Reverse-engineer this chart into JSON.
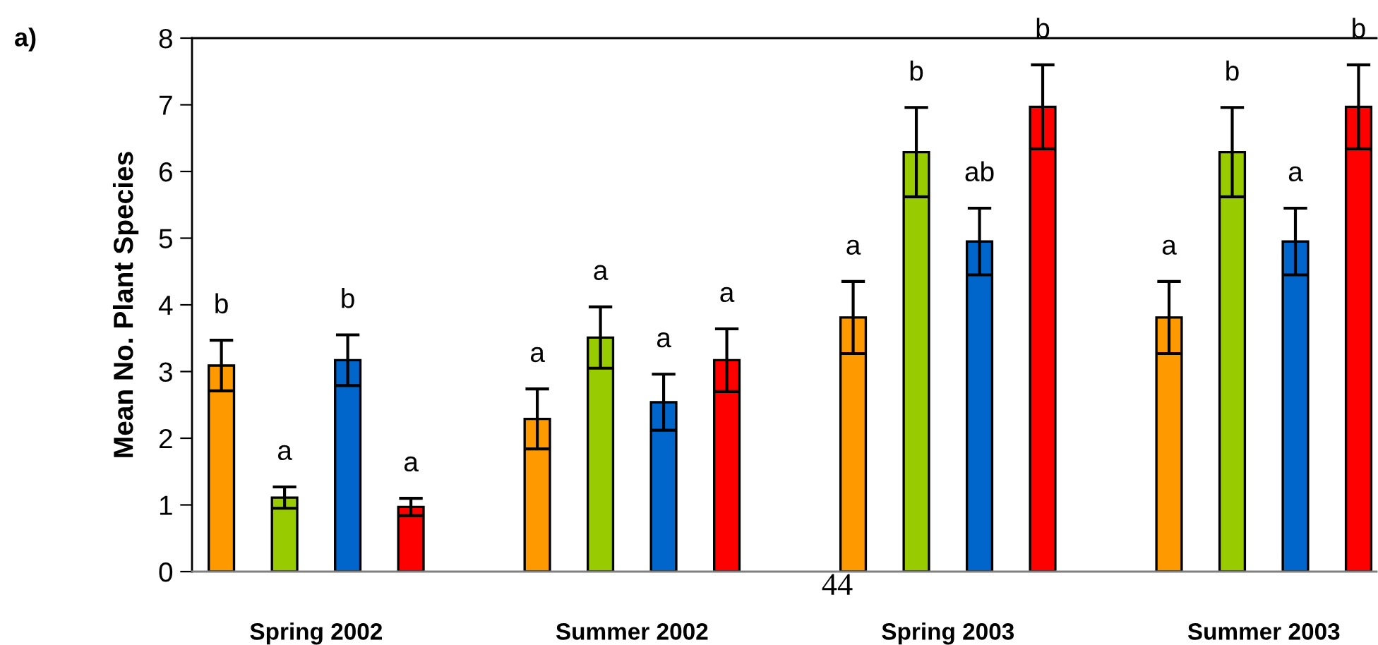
{
  "chart_data": {
    "type": "bar",
    "ylabel": "Mean No. Plant Species",
    "categories": [
      "Spring 2002",
      "Summer 2002",
      "Spring 2003",
      "Summer 2003"
    ],
    "series": [
      {
        "color": "#ff9900",
        "values": [
          3.09,
          2.29,
          3.81,
          3.81
        ],
        "errors": [
          0.38,
          0.45,
          0.54,
          0.54
        ],
        "value_labels": [
          "b",
          "a",
          "a",
          "a"
        ]
      },
      {
        "color": "#99cc00",
        "values": [
          1.11,
          3.51,
          6.29,
          6.29
        ],
        "errors": [
          0.16,
          0.46,
          0.67,
          0.67
        ],
        "value_labels": [
          "a",
          "a",
          "b",
          "b"
        ]
      },
      {
        "color": "#0066cc",
        "values": [
          3.17,
          2.54,
          4.95,
          4.95
        ],
        "errors": [
          0.38,
          0.42,
          0.5,
          0.5
        ],
        "value_labels": [
          "b",
          "a",
          "ab",
          "a"
        ]
      },
      {
        "color": "#ff0000",
        "values": [
          0.97,
          3.17,
          6.97,
          6.97
        ],
        "errors": [
          0.13,
          0.47,
          0.63,
          0.63
        ],
        "value_labels": [
          "a",
          "a",
          "b",
          "b"
        ]
      }
    ],
    "ylim": [
      0,
      8
    ],
    "yticks": [
      0,
      1,
      2,
      3,
      4,
      5,
      6,
      7,
      8
    ],
    "grid": false,
    "legend": false,
    "annotations": [
      "a)",
      "44"
    ]
  }
}
